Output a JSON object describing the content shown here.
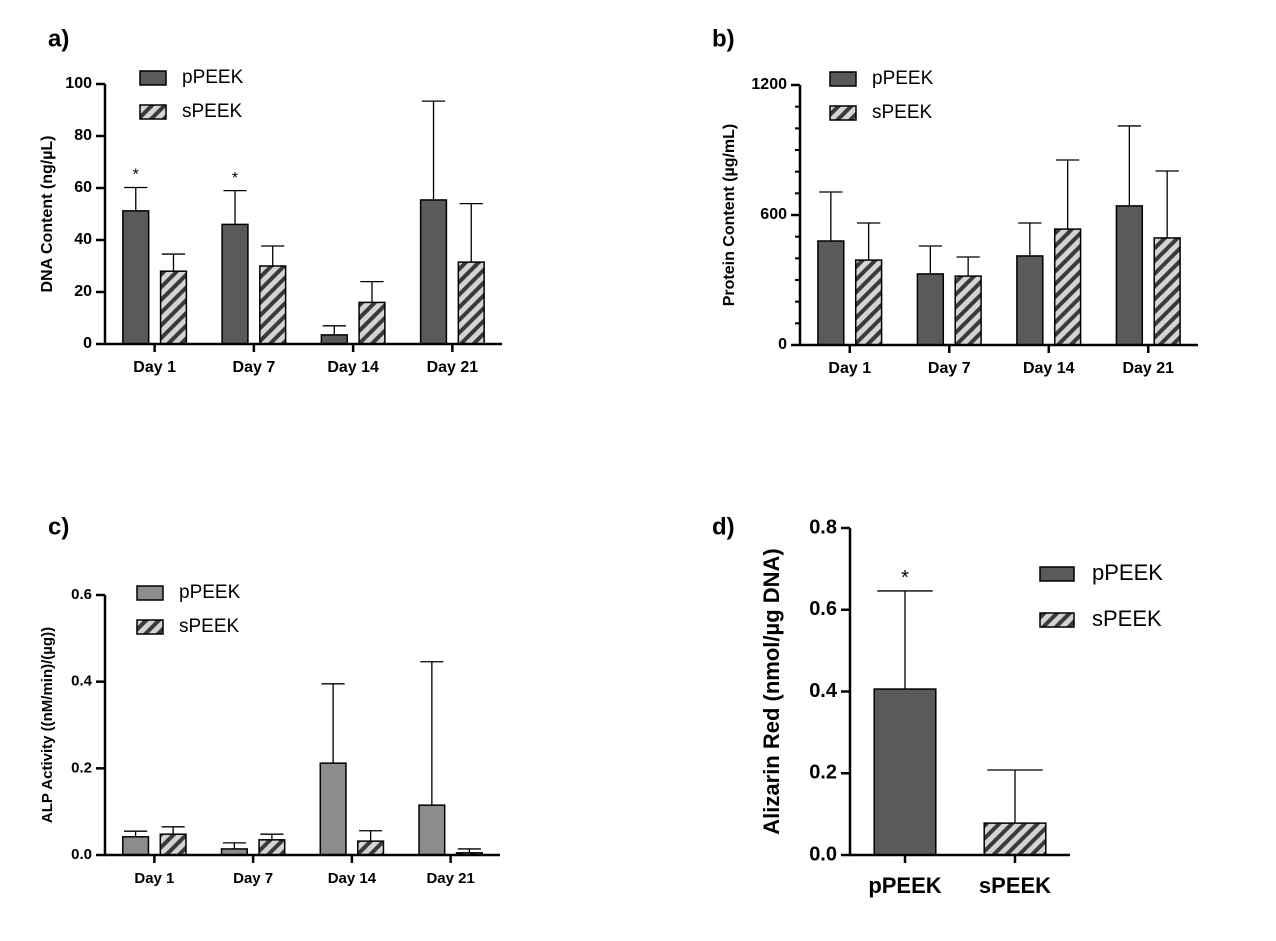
{
  "chart_data": [
    {
      "type": "bar",
      "title": "a)",
      "ylabel": "DNA Content (ng/µL)",
      "categories": [
        "Day 1",
        "Day 7",
        "Day 14",
        "Day 21"
      ],
      "series": [
        {
          "name": "pPEEK",
          "color": "#5a5a5a",
          "values": [
            51.2,
            46,
            3.5,
            55.4
          ],
          "errors": [
            9,
            13,
            3.5,
            38
          ]
        },
        {
          "name": "sPEEK",
          "color": "#d4d4d4",
          "pattern": "hatch",
          "values": [
            28,
            30,
            16,
            31.5
          ],
          "errors": [
            6.6,
            7.7,
            8,
            22.5
          ]
        }
      ],
      "annotations": [
        {
          "text": "*",
          "series": 0,
          "index": 0
        },
        {
          "text": "*",
          "series": 0,
          "index": 1
        }
      ],
      "ylim": [
        0,
        100
      ],
      "yticks": [
        0,
        20,
        40,
        60,
        80,
        100
      ],
      "legend": "upper left"
    },
    {
      "type": "bar",
      "title": "b)",
      "ylabel": "Protein Content (µg/mL)",
      "categories": [
        "Day 1",
        "Day 7",
        "Day 14",
        "Day 21"
      ],
      "series": [
        {
          "name": "pPEEK",
          "color": "#5a5a5a",
          "values": [
            480,
            328,
            411,
            642
          ],
          "errors": [
            226,
            129,
            152,
            369
          ]
        },
        {
          "name": "sPEEK",
          "color": "#d4d4d4",
          "pattern": "hatch",
          "values": [
            392,
            318,
            535,
            494
          ],
          "errors": [
            171,
            88,
            319,
            309
          ]
        }
      ],
      "ylim": [
        0,
        1200
      ],
      "yticks": [
        0,
        600,
        1200
      ],
      "legend": "upper left"
    },
    {
      "type": "bar",
      "title": "c)",
      "ylabel": "ALP Activity ((nM/min)/(µg))",
      "categories": [
        "Day 1",
        "Day 7",
        "Day 14",
        "Day 21"
      ],
      "series": [
        {
          "name": "pPEEK",
          "color": "#8c8c8c",
          "values": [
            0.042,
            0.014,
            0.212,
            0.115
          ],
          "errors": [
            0.013,
            0.014,
            0.183,
            0.331
          ]
        },
        {
          "name": "sPEEK",
          "color": "#d4d4d4",
          "pattern": "hatch",
          "values": [
            0.048,
            0.035,
            0.032,
            0.005
          ],
          "errors": [
            0.017,
            0.013,
            0.024,
            0.009
          ]
        }
      ],
      "ylim": [
        0,
        0.6
      ],
      "yticks": [
        {
          "value": 0,
          "label": "0.0"
        },
        0.2,
        0.4,
        0.6
      ],
      "legend": "upper left"
    },
    {
      "type": "bar",
      "title": "d)",
      "ylabel": "Alizarin Red (nmol/µg DNA)",
      "categories": [
        "pPEEK",
        "sPEEK"
      ],
      "series": [
        {
          "name": "pPEEK",
          "color": "#5a5a5a",
          "values": [
            0.406,
            null
          ],
          "errors": [
            0.24,
            null
          ]
        },
        {
          "name": "sPEEK",
          "color": "#d4d4d4",
          "pattern": "hatch",
          "values": [
            null,
            0.078
          ],
          "errors": [
            null,
            0.13
          ]
        }
      ],
      "annotations": [
        {
          "text": "*",
          "series": 0,
          "index": 0
        }
      ],
      "ylim": [
        0,
        0.8
      ],
      "yticks": [
        {
          "value": 0,
          "label": "0.0"
        },
        0.2,
        0.4,
        0.6,
        0.8
      ],
      "legend": "right"
    }
  ]
}
